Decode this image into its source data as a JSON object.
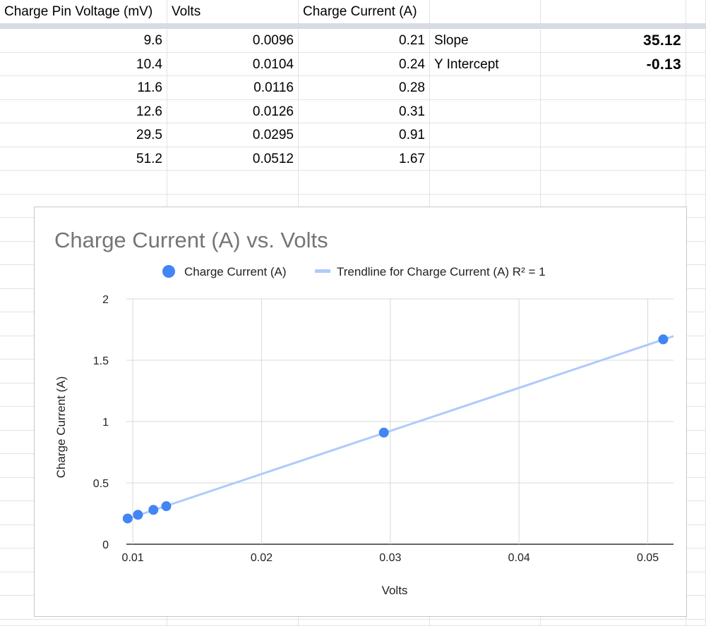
{
  "sheet": {
    "headers": [
      "Charge Pin Voltage (mV)",
      "Volts",
      "Charge Current (A)"
    ],
    "rows": [
      [
        "9.6",
        "0.0096",
        "0.21"
      ],
      [
        "10.4",
        "0.0104",
        "0.24"
      ],
      [
        "11.6",
        "0.0116",
        "0.28"
      ],
      [
        "12.6",
        "0.0126",
        "0.31"
      ],
      [
        "29.5",
        "0.0295",
        "0.91"
      ],
      [
        "51.2",
        "0.0512",
        "1.67"
      ]
    ],
    "slope_label": "Slope",
    "slope_value": "35.12",
    "intercept_label": "Y Intercept",
    "intercept_value": "-0.13"
  },
  "chart_data": {
    "type": "scatter",
    "title": "Charge Current (A) vs. Volts",
    "xlabel": "Volts",
    "ylabel": "Charge Current (A)",
    "xlim": [
      0.0095,
      0.052
    ],
    "ylim": [
      0,
      2
    ],
    "xticks": [
      0.01,
      0.02,
      0.03,
      0.04,
      0.05
    ],
    "xtick_labels": [
      "0.01",
      "0.02",
      "0.03",
      "0.04",
      "0.05"
    ],
    "yticks": [
      0,
      0.5,
      1,
      1.5,
      2
    ],
    "ytick_labels": [
      "0",
      "0.5",
      "1",
      "1.5",
      "2"
    ],
    "grid": true,
    "legend_position": "top",
    "series": [
      {
        "name": "Charge Current (A)",
        "color": "#4285f4",
        "x": [
          0.0096,
          0.0104,
          0.0116,
          0.0126,
          0.0295,
          0.0512
        ],
        "y": [
          0.21,
          0.24,
          0.28,
          0.31,
          0.91,
          1.67
        ]
      }
    ],
    "trendline": {
      "name": "Trendline for Charge Current (A) R² = 1",
      "color": "#aecbfa",
      "slope": 35.12,
      "intercept": -0.13
    }
  }
}
